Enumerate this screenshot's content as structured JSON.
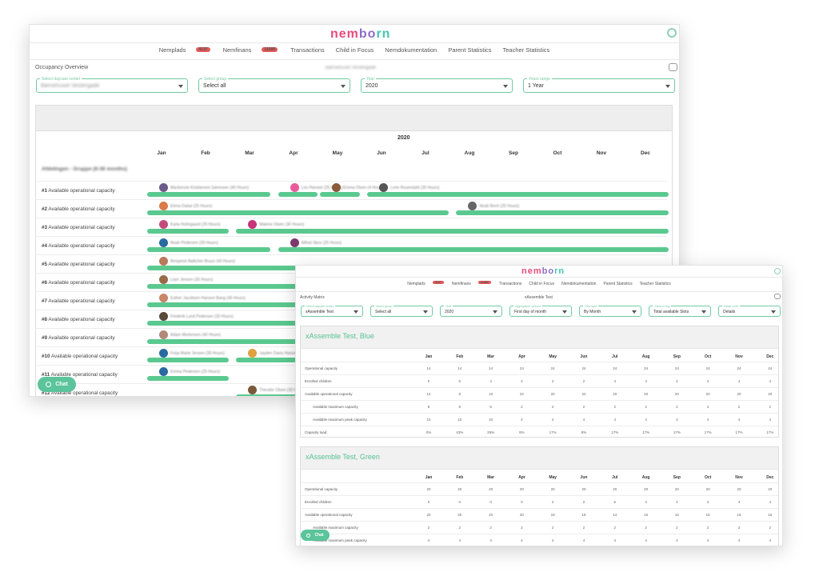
{
  "brand": {
    "logo_a": "nem",
    "logo_b": "bo",
    "logo_c": "rn",
    "icons": {
      "settings": "gear-icon",
      "print": "printer-icon",
      "chat": "chat-bubble-icon"
    },
    "accent": "#5bc98f",
    "badge_color": "#e45858"
  },
  "nav": [
    {
      "label": "Nemplads",
      "badge": "4137",
      "active": true
    },
    {
      "label": "Nemfinans",
      "badge": "11689",
      "active": false
    },
    {
      "label": "Transactions",
      "badge": "",
      "active": false
    },
    {
      "label": "Child in Focus",
      "badge": "",
      "active": false
    },
    {
      "label": "Nemdokumentation",
      "badge": "",
      "active": false
    },
    {
      "label": "Parent Statistics",
      "badge": "",
      "active": false
    },
    {
      "label": "Teacher Statistics",
      "badge": "",
      "active": false
    }
  ],
  "occupancy": {
    "page_title": "Occupancy Overview",
    "center_name": "Børnehuset Vestergade",
    "filters": [
      {
        "label": "Select daycare center",
        "value": "Børnehuset Vestergade",
        "blurred": true
      },
      {
        "label": "Select group",
        "value": "Select all",
        "blurred": false
      },
      {
        "label": "Year",
        "value": "2020",
        "blurred": false
      },
      {
        "label": "Years range",
        "value": "1 Year",
        "blurred": false
      }
    ],
    "year": "2020",
    "months": [
      "Jan",
      "Feb",
      "Mar",
      "Apr",
      "May",
      "Jun",
      "Jul",
      "Aug",
      "Sep",
      "Oct",
      "Nov",
      "Dec"
    ],
    "group_title": "Afdelingen - Gruppe (6-36 months)",
    "rows": [
      {
        "num": "#1",
        "label": "Available operational capacity",
        "bookings": [
          {
            "start": 0,
            "end": 0.24,
            "name": "Mackenzie Kristiansen Sørensen (40 Hours)",
            "color": "#6b5a8a"
          },
          {
            "start": 0.25,
            "end": 0.33,
            "name": "Leo Hansen (25 Hours)",
            "color": "#e85a9a"
          },
          {
            "start": 0.33,
            "end": 0.41,
            "name": "Emma Olsen (4 Hours)",
            "color": "#8a5a3a"
          },
          {
            "start": 0.42,
            "end": 1,
            "name": "Lone Rosendahl (30 Hours)",
            "color": "#555"
          }
        ]
      },
      {
        "num": "#2",
        "label": "Available operational capacity",
        "bookings": [
          {
            "start": 0,
            "end": 0.58,
            "name": "Elena Dalsø (25 Hours)",
            "color": "#d87a4a"
          },
          {
            "start": 0.59,
            "end": 1,
            "name": "Noah Bech (25 Hours)",
            "color": "#666"
          }
        ]
      },
      {
        "num": "#3",
        "label": "Available operational capacity",
        "bookings": [
          {
            "start": 0,
            "end": 0.16,
            "name": "Karla Holmgaard (25 Hours)",
            "color": "#c24d7a"
          },
          {
            "start": 0.17,
            "end": 1,
            "name": "Malene Olsen (30 Hours)",
            "color": "#c8347a"
          }
        ]
      },
      {
        "num": "#4",
        "label": "Available operational capacity",
        "bookings": [
          {
            "start": 0,
            "end": 0.24,
            "name": "Noah Pedersen (30 Hours)",
            "color": "#2a6aa0"
          },
          {
            "start": 0.25,
            "end": 1,
            "name": "Alfred Skov (25 Hours)",
            "color": "#7a3a6a"
          }
        ]
      },
      {
        "num": "#5",
        "label": "Available operational capacity",
        "bookings": [
          {
            "start": 0,
            "end": 1,
            "name": "Benjamin Bøttcher Bruun (40 Hours)",
            "color": "#b87a5a"
          }
        ]
      },
      {
        "num": "#6",
        "label": "Available operational capacity",
        "bookings": [
          {
            "start": 0,
            "end": 1,
            "name": "Liam Jensen (30 Hours)",
            "color": "#9a6a4a"
          }
        ]
      },
      {
        "num": "#7",
        "label": "Available operational capacity",
        "bookings": [
          {
            "start": 0,
            "end": 1,
            "name": "Esther Jacobsen Hansen Bang (40 Hours)",
            "color": "#c8866a"
          }
        ]
      },
      {
        "num": "#8",
        "label": "Available operational capacity",
        "bookings": [
          {
            "start": 0,
            "end": 1,
            "name": "Frederik Lund Pedersen (30 Hours)",
            "color": "#5a4a3a"
          }
        ]
      },
      {
        "num": "#9",
        "label": "Available operational capacity",
        "bookings": [
          {
            "start": 0,
            "end": 1,
            "name": "Adam Mortensen (40 Hours)",
            "color": "#b08a7a"
          }
        ]
      },
      {
        "num": "#10",
        "label": "Available operational capacity",
        "bookings": [
          {
            "start": 0,
            "end": 0.16,
            "name": "Freja Marie Jensen (30 Hours)",
            "color": "#2a6aa0"
          },
          {
            "start": 0.17,
            "end": 1,
            "name": "Jayden Davis Hansen (30 Hours)",
            "color": "#e0a040"
          }
        ]
      },
      {
        "num": "#11",
        "label": "Available operational capacity",
        "bookings": [
          {
            "start": 0,
            "end": 0.16,
            "name": "Emma Pedersen (25 Hours)",
            "color": "#2a6aa0"
          }
        ]
      },
      {
        "num": "#12",
        "label": "Available operational capacity",
        "bookings": [
          {
            "start": 0.17,
            "end": 1,
            "name": "Theodor Olsen (30 Hours)",
            "color": "#7a5a3a"
          }
        ]
      }
    ]
  },
  "activity": {
    "page_title": "Activity Matrix",
    "center_name": "xAssemble Test",
    "filters": [
      {
        "label": "Select daycare center",
        "value": "xAssemble Test"
      },
      {
        "label": "Select group",
        "value": "Select all"
      },
      {
        "label": "Year",
        "value": "2020"
      },
      {
        "label": "Aggregation method",
        "value": "First day of month"
      },
      {
        "label": "View type",
        "value": "By Month"
      },
      {
        "label": "Value of Tag",
        "value": "Total available Slots"
      },
      {
        "label": "Detail Level",
        "value": "Details"
      }
    ],
    "months": [
      "Jan",
      "Feb",
      "Mar",
      "Apr",
      "May",
      "Jun",
      "Jul",
      "Aug",
      "Sep",
      "Oct",
      "Nov",
      "Dec"
    ],
    "groups": [
      {
        "title": "xAssemble Test, Blue",
        "rows": [
          {
            "label": "Operational capacity",
            "indent": false,
            "values": [
              "14",
              "14",
              "14",
              "24",
              "24",
              "24",
              "24",
              "24",
              "24",
              "24",
              "24",
              "24"
            ]
          },
          {
            "label": "Enrolled children",
            "indent": false,
            "values": [
              "0",
              "6",
              "4",
              "2",
              "4",
              "2",
              "4",
              "4",
              "4",
              "4",
              "4",
              "4"
            ]
          },
          {
            "label": "Available operational capacity",
            "indent": false,
            "values": [
              "14",
              "8",
              "10",
              "22",
              "20",
              "22",
              "20",
              "20",
              "20",
              "20",
              "20",
              "20"
            ]
          },
          {
            "label": "Available maximum capacity",
            "indent": true,
            "values": [
              "8",
              "8",
              "8",
              "2",
              "2",
              "2",
              "2",
              "2",
              "2",
              "2",
              "2",
              "2"
            ]
          },
          {
            "label": "Available maximum peak capacity",
            "indent": true,
            "values": [
              "10",
              "10",
              "10",
              "4",
              "4",
              "4",
              "4",
              "4",
              "4",
              "4",
              "4",
              "4"
            ]
          },
          {
            "label": "Capacity load",
            "indent": false,
            "values": [
              "0%",
              "43%",
              "29%",
              "8%",
              "17%",
              "8%",
              "17%",
              "17%",
              "17%",
              "17%",
              "17%",
              "17%"
            ]
          }
        ]
      },
      {
        "title": "xAssemble Test, Green",
        "rows": [
          {
            "label": "Operational capacity",
            "indent": false,
            "values": [
              "20",
              "20",
              "20",
              "20",
              "20",
              "20",
              "20",
              "20",
              "20",
              "20",
              "20",
              "20"
            ]
          },
          {
            "label": "Enrolled children",
            "indent": false,
            "values": [
              "0",
              "0",
              "0",
              "0",
              "2",
              "2",
              "6",
              "4",
              "4",
              "4",
              "4",
              "4"
            ]
          },
          {
            "label": "Available operational capacity",
            "indent": false,
            "values": [
              "20",
              "20",
              "20",
              "20",
              "18",
              "18",
              "14",
              "16",
              "16",
              "16",
              "16",
              "16"
            ]
          },
          {
            "label": "Available maximum capacity",
            "indent": true,
            "values": [
              "2",
              "2",
              "2",
              "2",
              "2",
              "2",
              "2",
              "2",
              "2",
              "2",
              "2",
              "2"
            ]
          },
          {
            "label": "Available maximum peak capacity",
            "indent": true,
            "values": [
              "4",
              "4",
              "4",
              "4",
              "4",
              "4",
              "4",
              "4",
              "4",
              "4",
              "4",
              "4"
            ]
          }
        ]
      }
    ]
  },
  "chat": {
    "label": "Chat"
  }
}
